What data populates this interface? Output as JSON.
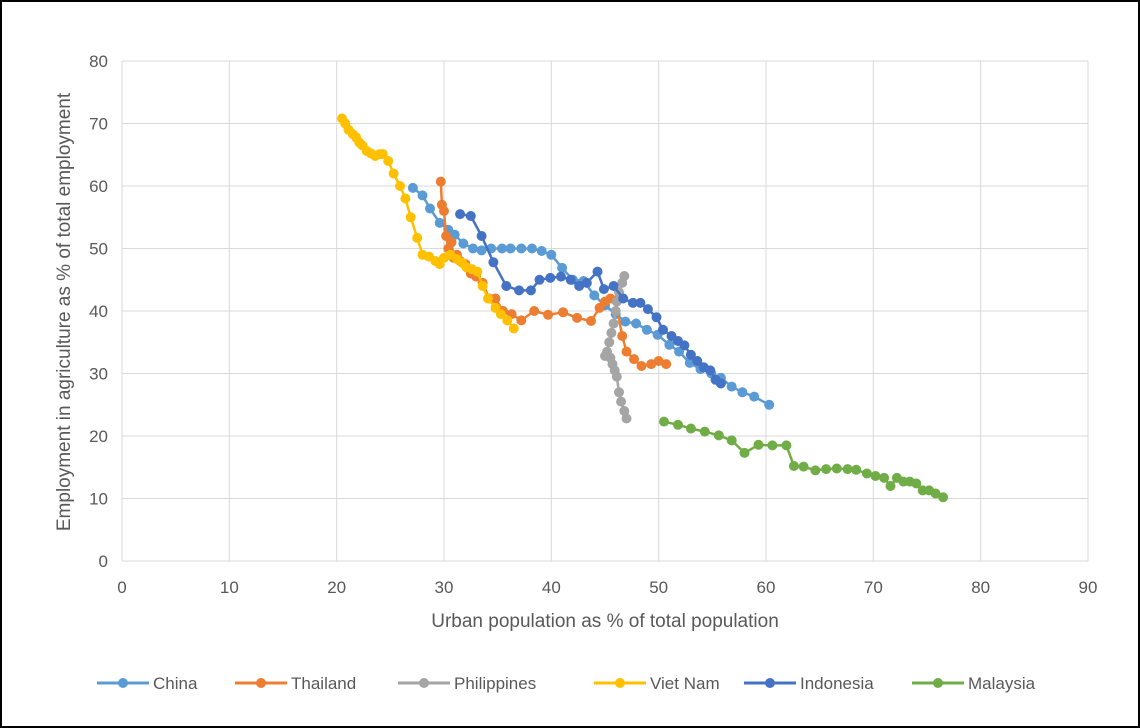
{
  "chart_data": {
    "type": "scatter",
    "title": "",
    "xlabel": "Urban population as % of total population",
    "ylabel": "Employment in agriculture as % of total employment",
    "xlim": [
      0,
      90
    ],
    "ylim": [
      0,
      80
    ],
    "xticks": [
      0,
      10,
      20,
      30,
      40,
      50,
      60,
      70,
      80,
      90
    ],
    "yticks": [
      0,
      10,
      20,
      30,
      40,
      50,
      60,
      70,
      80
    ],
    "grid": true,
    "legend_position": "bottom",
    "markers": "circle",
    "connected": true,
    "series": [
      {
        "name": "China",
        "color": "#5B9BD5",
        "points": [
          [
            27.1,
            59.7
          ],
          [
            28.0,
            58.5
          ],
          [
            28.7,
            56.4
          ],
          [
            29.6,
            54.1
          ],
          [
            30.4,
            53.0
          ],
          [
            31.0,
            52.2
          ],
          [
            31.8,
            50.8
          ],
          [
            32.7,
            50.0
          ],
          [
            33.5,
            49.7
          ],
          [
            34.4,
            50.0
          ],
          [
            35.4,
            50.0
          ],
          [
            36.2,
            50.0
          ],
          [
            37.2,
            50.0
          ],
          [
            38.2,
            50.0
          ],
          [
            39.1,
            49.6
          ],
          [
            40.0,
            49.0
          ],
          [
            41.0,
            46.9
          ],
          [
            42.0,
            45.0
          ],
          [
            43.0,
            44.8
          ],
          [
            44.0,
            42.5
          ],
          [
            45.0,
            40.9
          ],
          [
            46.0,
            39.5
          ],
          [
            46.9,
            38.3
          ],
          [
            47.9,
            38.0
          ],
          [
            48.9,
            37.0
          ],
          [
            49.9,
            36.2
          ],
          [
            51.0,
            34.6
          ],
          [
            51.9,
            33.5
          ],
          [
            52.9,
            31.7
          ],
          [
            53.9,
            30.7
          ],
          [
            54.9,
            30.0
          ],
          [
            55.8,
            29.3
          ],
          [
            56.8,
            27.9
          ],
          [
            57.8,
            27.0
          ],
          [
            58.9,
            26.3
          ],
          [
            60.3,
            25.0
          ]
        ]
      },
      {
        "name": "Thailand",
        "color": "#ED7D31",
        "points": [
          [
            29.7,
            60.7
          ],
          [
            29.8,
            57.0
          ],
          [
            30.0,
            56.0
          ],
          [
            30.2,
            52.0
          ],
          [
            30.4,
            50.0
          ],
          [
            30.7,
            51.0
          ],
          [
            30.9,
            48.5
          ],
          [
            31.2,
            49.0
          ],
          [
            31.5,
            48.0
          ],
          [
            32.0,
            47.5
          ],
          [
            32.5,
            46.0
          ],
          [
            33.0,
            45.5
          ],
          [
            33.6,
            44.5
          ],
          [
            34.2,
            42.0
          ],
          [
            34.8,
            42.0
          ],
          [
            35.5,
            40.0
          ],
          [
            36.3,
            39.5
          ],
          [
            37.2,
            38.5
          ],
          [
            38.4,
            40.0
          ],
          [
            39.7,
            39.4
          ],
          [
            41.1,
            39.8
          ],
          [
            42.4,
            38.9
          ],
          [
            43.7,
            38.4
          ],
          [
            44.5,
            40.5
          ],
          [
            45.0,
            41.5
          ],
          [
            45.5,
            42.0
          ],
          [
            46.0,
            41.7
          ],
          [
            46.6,
            36.0
          ],
          [
            47.0,
            33.5
          ],
          [
            47.7,
            32.3
          ],
          [
            48.4,
            31.2
          ],
          [
            49.3,
            31.5
          ],
          [
            50.0,
            32.0
          ],
          [
            50.7,
            31.5
          ]
        ]
      },
      {
        "name": "Philippines",
        "color": "#A5A5A5",
        "points": [
          [
            46.8,
            45.6
          ],
          [
            46.6,
            44.5
          ],
          [
            46.3,
            43.0
          ],
          [
            46.1,
            41.5
          ],
          [
            46.0,
            40.0
          ],
          [
            45.8,
            38.0
          ],
          [
            45.6,
            36.5
          ],
          [
            45.4,
            35.0
          ],
          [
            45.2,
            33.5
          ],
          [
            45.0,
            32.8
          ],
          [
            45.5,
            32.5
          ],
          [
            45.7,
            31.5
          ],
          [
            45.9,
            30.5
          ],
          [
            46.1,
            29.5
          ],
          [
            46.3,
            27.0
          ],
          [
            46.5,
            25.5
          ],
          [
            46.8,
            24.0
          ],
          [
            47.0,
            22.8
          ]
        ]
      },
      {
        "name": "Viet Nam",
        "color": "#FFC000",
        "points": [
          [
            20.5,
            70.8
          ],
          [
            20.8,
            70.0
          ],
          [
            21.1,
            69.0
          ],
          [
            21.5,
            68.3
          ],
          [
            21.8,
            67.8
          ],
          [
            22.1,
            67.0
          ],
          [
            22.4,
            66.5
          ],
          [
            22.8,
            65.6
          ],
          [
            23.2,
            65.2
          ],
          [
            23.6,
            64.8
          ],
          [
            24.0,
            65.1
          ],
          [
            24.3,
            65.1
          ],
          [
            24.8,
            64.0
          ],
          [
            25.3,
            62.0
          ],
          [
            25.9,
            60.0
          ],
          [
            26.4,
            58.0
          ],
          [
            26.9,
            55.0
          ],
          [
            27.5,
            51.7
          ],
          [
            28.0,
            49.0
          ],
          [
            28.6,
            48.7
          ],
          [
            29.2,
            48.0
          ],
          [
            29.6,
            47.5
          ],
          [
            30.0,
            48.5
          ],
          [
            30.6,
            49.0
          ],
          [
            31.2,
            48.3
          ],
          [
            31.7,
            47.7
          ],
          [
            32.1,
            47.0
          ],
          [
            32.6,
            46.7
          ],
          [
            33.1,
            46.3
          ],
          [
            33.6,
            44.0
          ],
          [
            34.1,
            42.0
          ],
          [
            34.8,
            40.5
          ],
          [
            35.3,
            39.5
          ],
          [
            35.9,
            38.5
          ],
          [
            36.5,
            37.2
          ]
        ]
      },
      {
        "name": "Indonesia",
        "color": "#4472C4",
        "points": [
          [
            31.5,
            55.5
          ],
          [
            32.5,
            55.2
          ],
          [
            33.5,
            52.0
          ],
          [
            34.6,
            47.8
          ],
          [
            35.8,
            44.0
          ],
          [
            37.0,
            43.3
          ],
          [
            38.1,
            43.3
          ],
          [
            38.9,
            45.0
          ],
          [
            39.9,
            45.3
          ],
          [
            40.9,
            45.5
          ],
          [
            41.8,
            45.0
          ],
          [
            42.6,
            44.0
          ],
          [
            43.3,
            44.5
          ],
          [
            44.3,
            46.3
          ],
          [
            44.9,
            43.5
          ],
          [
            45.8,
            44.0
          ],
          [
            46.7,
            42.0
          ],
          [
            47.6,
            41.3
          ],
          [
            48.3,
            41.3
          ],
          [
            49.0,
            40.3
          ],
          [
            49.8,
            39.0
          ],
          [
            50.4,
            37.0
          ],
          [
            51.2,
            36.0
          ],
          [
            51.8,
            35.2
          ],
          [
            52.4,
            34.5
          ],
          [
            53.0,
            33.0
          ],
          [
            53.6,
            32.0
          ],
          [
            54.2,
            31.0
          ],
          [
            54.8,
            30.5
          ],
          [
            55.3,
            29.0
          ],
          [
            55.8,
            28.4
          ]
        ]
      },
      {
        "name": "Malaysia",
        "color": "#70AD47",
        "points": [
          [
            50.5,
            22.3
          ],
          [
            51.8,
            21.8
          ],
          [
            53.0,
            21.2
          ],
          [
            54.3,
            20.7
          ],
          [
            55.6,
            20.1
          ],
          [
            56.8,
            19.3
          ],
          [
            58.0,
            17.3
          ],
          [
            59.3,
            18.6
          ],
          [
            60.6,
            18.5
          ],
          [
            61.9,
            18.5
          ],
          [
            62.6,
            15.2
          ],
          [
            63.5,
            15.1
          ],
          [
            64.6,
            14.5
          ],
          [
            65.6,
            14.7
          ],
          [
            66.6,
            14.8
          ],
          [
            67.6,
            14.7
          ],
          [
            68.4,
            14.6
          ],
          [
            69.4,
            14.0
          ],
          [
            70.2,
            13.6
          ],
          [
            71.0,
            13.3
          ],
          [
            71.6,
            12.0
          ],
          [
            72.2,
            13.3
          ],
          [
            72.8,
            12.7
          ],
          [
            73.4,
            12.7
          ],
          [
            74.0,
            12.4
          ],
          [
            74.6,
            11.3
          ],
          [
            75.2,
            11.3
          ],
          [
            75.8,
            10.8
          ],
          [
            76.5,
            10.2
          ]
        ]
      }
    ]
  }
}
